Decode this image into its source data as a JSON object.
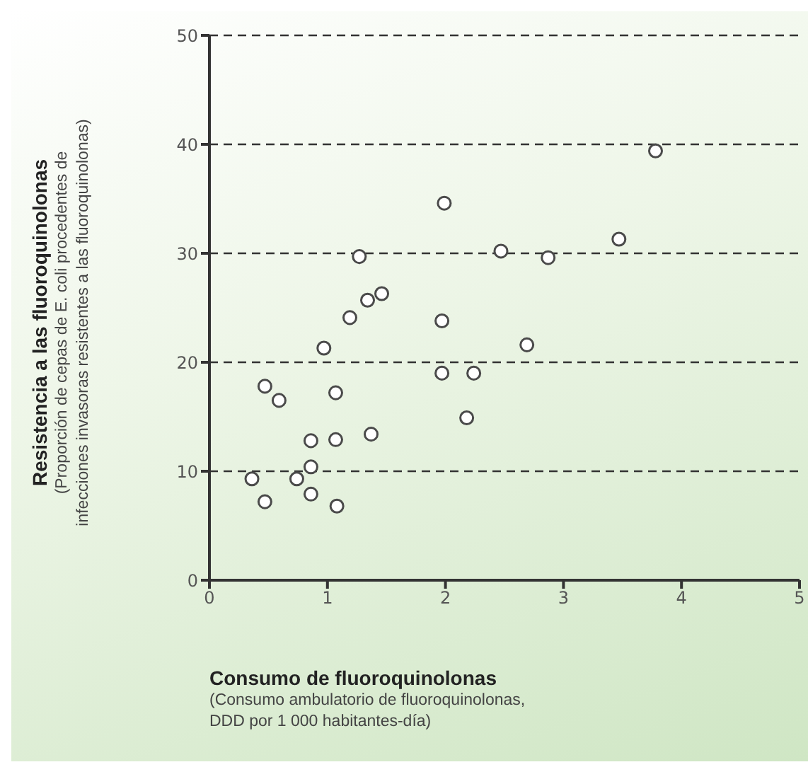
{
  "chart_data": {
    "type": "scatter",
    "xlabel": "Consumo de fluoroquinolonas\n(Consumo ambulatorio de fluoroquinolonas,\nDDD por 1 000 habitantes-día)",
    "ylabel": "Resistencia a las fluoroquinolonas\n(Proporción de cepas de E. coli procedentes de\ninfecciones invasoras resistentes a las fluoroquinolonas)",
    "xlim": [
      0,
      5
    ],
    "xticks": [
      0,
      1,
      2,
      3,
      4,
      5
    ],
    "ylim": [
      0,
      50
    ],
    "yticks": [
      0,
      10,
      20,
      30,
      40,
      50
    ],
    "grid": "y",
    "marker": "circle",
    "series": [
      {
        "color": "#ffffff",
        "x": [
          3.78,
          1.99,
          1.27,
          2.47,
          2.87,
          3.47,
          1.46,
          1.34,
          1.19,
          0.97,
          1.97,
          1.97,
          2.24,
          2.69,
          2.18,
          0.47,
          0.59,
          1.07,
          1.37,
          1.07,
          0.86,
          0.86,
          0.74,
          0.36,
          0.47,
          0.86,
          1.08
        ],
        "values": [
          39.4,
          34.6,
          29.7,
          30.2,
          29.6,
          31.3,
          26.3,
          25.7,
          24.1,
          21.3,
          23.8,
          19.0,
          19.0,
          21.6,
          14.9,
          17.8,
          16.5,
          17.2,
          13.4,
          12.9,
          12.8,
          10.4,
          9.3,
          9.3,
          7.2,
          7.9,
          6.8
        ]
      }
    ]
  }
}
